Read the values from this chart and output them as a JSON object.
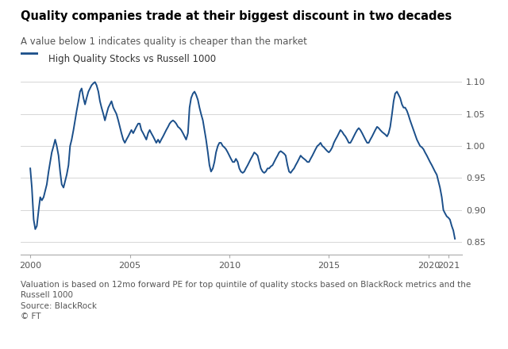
{
  "title": "Quality companies trade at their biggest discount in two decades",
  "subtitle": "A value below 1 indicates quality is cheaper than the market",
  "legend_label": "High Quality Stocks vs Russell 1000",
  "footnote1": "Valuation is based on 12mo forward PE for top quintile of quality stocks based on BlackRock metrics and the",
  "footnote2": "Russell 1000",
  "footnote3": "Source: BlackRock",
  "footnote4": "© FT",
  "line_color": "#1B4F8A",
  "background_color": "#ffffff",
  "ylim": [
    0.83,
    1.13
  ],
  "yticks": [
    0.85,
    0.9,
    0.95,
    1.0,
    1.05,
    1.1
  ],
  "x_start_year": 1999.5,
  "x_end_year": 2021.7,
  "xtick_positions": [
    2000,
    2005,
    2010,
    2015,
    2020,
    2021
  ],
  "data": [
    [
      2000.0,
      0.965
    ],
    [
      2000.08,
      0.935
    ],
    [
      2000.17,
      0.885
    ],
    [
      2000.25,
      0.87
    ],
    [
      2000.33,
      0.875
    ],
    [
      2000.42,
      0.9
    ],
    [
      2000.5,
      0.92
    ],
    [
      2000.58,
      0.915
    ],
    [
      2000.67,
      0.92
    ],
    [
      2000.75,
      0.93
    ],
    [
      2000.83,
      0.94
    ],
    [
      2000.92,
      0.96
    ],
    [
      2001.0,
      0.975
    ],
    [
      2001.08,
      0.99
    ],
    [
      2001.17,
      1.0
    ],
    [
      2001.25,
      1.01
    ],
    [
      2001.33,
      1.0
    ],
    [
      2001.42,
      0.985
    ],
    [
      2001.5,
      0.96
    ],
    [
      2001.58,
      0.94
    ],
    [
      2001.67,
      0.935
    ],
    [
      2001.75,
      0.945
    ],
    [
      2001.83,
      0.955
    ],
    [
      2001.92,
      0.97
    ],
    [
      2002.0,
      1.0
    ],
    [
      2002.08,
      1.01
    ],
    [
      2002.17,
      1.025
    ],
    [
      2002.25,
      1.04
    ],
    [
      2002.33,
      1.055
    ],
    [
      2002.42,
      1.07
    ],
    [
      2002.5,
      1.085
    ],
    [
      2002.58,
      1.09
    ],
    [
      2002.67,
      1.075
    ],
    [
      2002.75,
      1.065
    ],
    [
      2002.83,
      1.075
    ],
    [
      2002.92,
      1.085
    ],
    [
      2003.0,
      1.09
    ],
    [
      2003.08,
      1.095
    ],
    [
      2003.17,
      1.098
    ],
    [
      2003.25,
      1.1
    ],
    [
      2003.33,
      1.095
    ],
    [
      2003.42,
      1.085
    ],
    [
      2003.5,
      1.07
    ],
    [
      2003.58,
      1.06
    ],
    [
      2003.67,
      1.05
    ],
    [
      2003.75,
      1.04
    ],
    [
      2003.83,
      1.05
    ],
    [
      2003.92,
      1.06
    ],
    [
      2004.0,
      1.065
    ],
    [
      2004.08,
      1.07
    ],
    [
      2004.17,
      1.06
    ],
    [
      2004.25,
      1.055
    ],
    [
      2004.33,
      1.05
    ],
    [
      2004.42,
      1.04
    ],
    [
      2004.5,
      1.03
    ],
    [
      2004.58,
      1.02
    ],
    [
      2004.67,
      1.01
    ],
    [
      2004.75,
      1.005
    ],
    [
      2004.83,
      1.01
    ],
    [
      2004.92,
      1.015
    ],
    [
      2005.0,
      1.02
    ],
    [
      2005.08,
      1.025
    ],
    [
      2005.17,
      1.02
    ],
    [
      2005.25,
      1.025
    ],
    [
      2005.33,
      1.03
    ],
    [
      2005.42,
      1.035
    ],
    [
      2005.5,
      1.035
    ],
    [
      2005.58,
      1.025
    ],
    [
      2005.67,
      1.02
    ],
    [
      2005.75,
      1.015
    ],
    [
      2005.83,
      1.01
    ],
    [
      2005.92,
      1.02
    ],
    [
      2006.0,
      1.025
    ],
    [
      2006.08,
      1.02
    ],
    [
      2006.17,
      1.015
    ],
    [
      2006.25,
      1.01
    ],
    [
      2006.33,
      1.005
    ],
    [
      2006.42,
      1.01
    ],
    [
      2006.5,
      1.005
    ],
    [
      2006.58,
      1.01
    ],
    [
      2006.67,
      1.015
    ],
    [
      2006.75,
      1.02
    ],
    [
      2006.83,
      1.025
    ],
    [
      2006.92,
      1.03
    ],
    [
      2007.0,
      1.035
    ],
    [
      2007.08,
      1.038
    ],
    [
      2007.17,
      1.04
    ],
    [
      2007.25,
      1.038
    ],
    [
      2007.33,
      1.035
    ],
    [
      2007.42,
      1.03
    ],
    [
      2007.5,
      1.028
    ],
    [
      2007.58,
      1.025
    ],
    [
      2007.67,
      1.02
    ],
    [
      2007.75,
      1.015
    ],
    [
      2007.83,
      1.01
    ],
    [
      2007.92,
      1.02
    ],
    [
      2008.0,
      1.06
    ],
    [
      2008.08,
      1.075
    ],
    [
      2008.17,
      1.082
    ],
    [
      2008.25,
      1.085
    ],
    [
      2008.33,
      1.08
    ],
    [
      2008.42,
      1.072
    ],
    [
      2008.5,
      1.06
    ],
    [
      2008.58,
      1.05
    ],
    [
      2008.67,
      1.04
    ],
    [
      2008.75,
      1.025
    ],
    [
      2008.83,
      1.01
    ],
    [
      2008.92,
      0.99
    ],
    [
      2009.0,
      0.97
    ],
    [
      2009.08,
      0.96
    ],
    [
      2009.17,
      0.965
    ],
    [
      2009.25,
      0.975
    ],
    [
      2009.33,
      0.99
    ],
    [
      2009.42,
      1.0
    ],
    [
      2009.5,
      1.005
    ],
    [
      2009.58,
      1.005
    ],
    [
      2009.67,
      1.0
    ],
    [
      2009.75,
      0.998
    ],
    [
      2009.83,
      0.995
    ],
    [
      2009.92,
      0.99
    ],
    [
      2010.0,
      0.985
    ],
    [
      2010.08,
      0.98
    ],
    [
      2010.17,
      0.975
    ],
    [
      2010.25,
      0.975
    ],
    [
      2010.33,
      0.98
    ],
    [
      2010.42,
      0.975
    ],
    [
      2010.5,
      0.965
    ],
    [
      2010.58,
      0.96
    ],
    [
      2010.67,
      0.958
    ],
    [
      2010.75,
      0.96
    ],
    [
      2010.83,
      0.965
    ],
    [
      2010.92,
      0.97
    ],
    [
      2011.0,
      0.975
    ],
    [
      2011.08,
      0.98
    ],
    [
      2011.17,
      0.985
    ],
    [
      2011.25,
      0.99
    ],
    [
      2011.33,
      0.988
    ],
    [
      2011.42,
      0.985
    ],
    [
      2011.5,
      0.975
    ],
    [
      2011.58,
      0.965
    ],
    [
      2011.67,
      0.96
    ],
    [
      2011.75,
      0.958
    ],
    [
      2011.83,
      0.96
    ],
    [
      2011.92,
      0.965
    ],
    [
      2012.0,
      0.965
    ],
    [
      2012.08,
      0.968
    ],
    [
      2012.17,
      0.97
    ],
    [
      2012.25,
      0.975
    ],
    [
      2012.33,
      0.98
    ],
    [
      2012.42,
      0.985
    ],
    [
      2012.5,
      0.99
    ],
    [
      2012.58,
      0.992
    ],
    [
      2012.67,
      0.99
    ],
    [
      2012.75,
      0.988
    ],
    [
      2012.83,
      0.985
    ],
    [
      2012.92,
      0.97
    ],
    [
      2013.0,
      0.96
    ],
    [
      2013.08,
      0.958
    ],
    [
      2013.17,
      0.962
    ],
    [
      2013.25,
      0.965
    ],
    [
      2013.33,
      0.97
    ],
    [
      2013.42,
      0.975
    ],
    [
      2013.5,
      0.98
    ],
    [
      2013.58,
      0.985
    ],
    [
      2013.67,
      0.982
    ],
    [
      2013.75,
      0.98
    ],
    [
      2013.83,
      0.978
    ],
    [
      2013.92,
      0.975
    ],
    [
      2014.0,
      0.975
    ],
    [
      2014.08,
      0.98
    ],
    [
      2014.17,
      0.985
    ],
    [
      2014.25,
      0.99
    ],
    [
      2014.33,
      0.995
    ],
    [
      2014.42,
      1.0
    ],
    [
      2014.5,
      1.002
    ],
    [
      2014.58,
      1.005
    ],
    [
      2014.67,
      1.0
    ],
    [
      2014.75,
      0.998
    ],
    [
      2014.83,
      0.995
    ],
    [
      2014.92,
      0.992
    ],
    [
      2015.0,
      0.99
    ],
    [
      2015.08,
      0.993
    ],
    [
      2015.17,
      0.998
    ],
    [
      2015.25,
      1.005
    ],
    [
      2015.33,
      1.01
    ],
    [
      2015.42,
      1.015
    ],
    [
      2015.5,
      1.02
    ],
    [
      2015.58,
      1.025
    ],
    [
      2015.67,
      1.022
    ],
    [
      2015.75,
      1.018
    ],
    [
      2015.83,
      1.015
    ],
    [
      2015.92,
      1.01
    ],
    [
      2016.0,
      1.005
    ],
    [
      2016.08,
      1.005
    ],
    [
      2016.17,
      1.01
    ],
    [
      2016.25,
      1.015
    ],
    [
      2016.33,
      1.02
    ],
    [
      2016.42,
      1.025
    ],
    [
      2016.5,
      1.028
    ],
    [
      2016.58,
      1.025
    ],
    [
      2016.67,
      1.02
    ],
    [
      2016.75,
      1.015
    ],
    [
      2016.83,
      1.01
    ],
    [
      2016.92,
      1.005
    ],
    [
      2017.0,
      1.005
    ],
    [
      2017.08,
      1.01
    ],
    [
      2017.17,
      1.015
    ],
    [
      2017.25,
      1.02
    ],
    [
      2017.33,
      1.025
    ],
    [
      2017.42,
      1.03
    ],
    [
      2017.5,
      1.028
    ],
    [
      2017.58,
      1.025
    ],
    [
      2017.67,
      1.022
    ],
    [
      2017.75,
      1.02
    ],
    [
      2017.83,
      1.018
    ],
    [
      2017.92,
      1.015
    ],
    [
      2018.0,
      1.02
    ],
    [
      2018.08,
      1.03
    ],
    [
      2018.17,
      1.05
    ],
    [
      2018.25,
      1.07
    ],
    [
      2018.33,
      1.082
    ],
    [
      2018.42,
      1.085
    ],
    [
      2018.5,
      1.08
    ],
    [
      2018.58,
      1.075
    ],
    [
      2018.67,
      1.065
    ],
    [
      2018.75,
      1.06
    ],
    [
      2018.83,
      1.06
    ],
    [
      2018.92,
      1.055
    ],
    [
      2019.0,
      1.048
    ],
    [
      2019.08,
      1.04
    ],
    [
      2019.17,
      1.032
    ],
    [
      2019.25,
      1.025
    ],
    [
      2019.33,
      1.018
    ],
    [
      2019.42,
      1.01
    ],
    [
      2019.5,
      1.005
    ],
    [
      2019.58,
      1.0
    ],
    [
      2019.67,
      0.998
    ],
    [
      2019.75,
      0.995
    ],
    [
      2019.83,
      0.99
    ],
    [
      2019.92,
      0.985
    ],
    [
      2020.0,
      0.98
    ],
    [
      2020.08,
      0.975
    ],
    [
      2020.17,
      0.97
    ],
    [
      2020.25,
      0.965
    ],
    [
      2020.33,
      0.96
    ],
    [
      2020.42,
      0.955
    ],
    [
      2020.5,
      0.945
    ],
    [
      2020.58,
      0.935
    ],
    [
      2020.67,
      0.92
    ],
    [
      2020.75,
      0.9
    ],
    [
      2020.83,
      0.895
    ],
    [
      2020.92,
      0.89
    ],
    [
      2021.0,
      0.888
    ],
    [
      2021.08,
      0.885
    ],
    [
      2021.17,
      0.875
    ],
    [
      2021.25,
      0.868
    ],
    [
      2021.33,
      0.855
    ]
  ]
}
